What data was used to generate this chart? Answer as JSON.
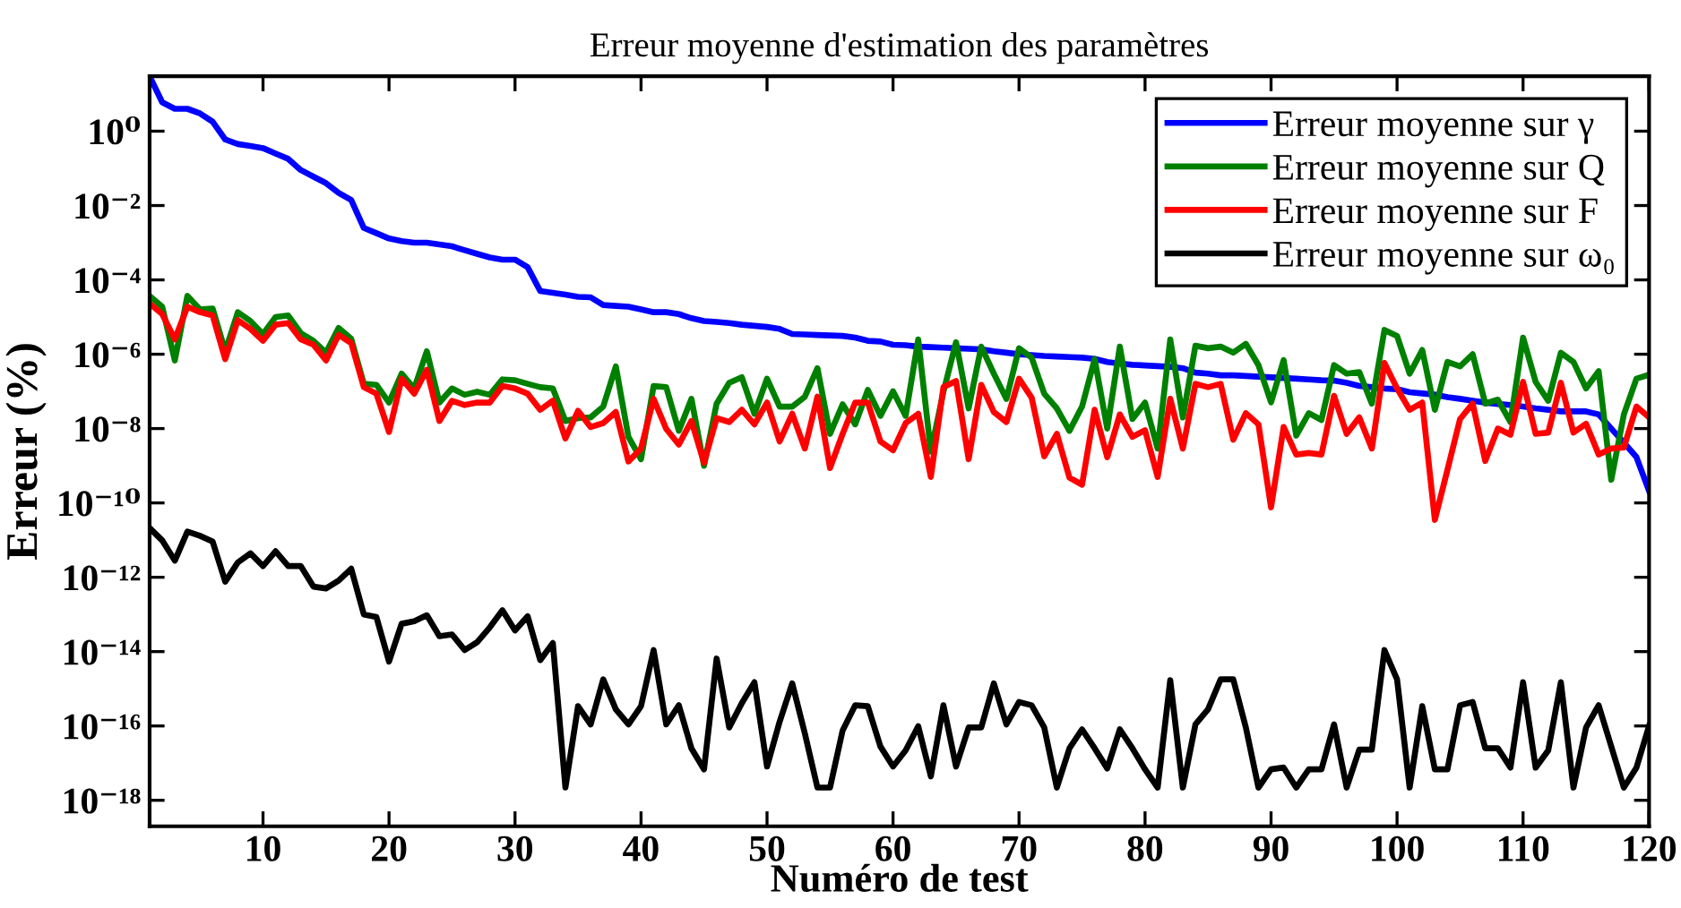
{
  "chart_data": {
    "type": "line",
    "title": "Erreur moyenne d'estimation des paramètres",
    "xlabel": "Numéro de test",
    "ylabel": "Erreur (%)",
    "x": [
      1,
      2,
      3,
      4,
      5,
      6,
      7,
      8,
      9,
      10,
      11,
      12,
      13,
      14,
      15,
      16,
      17,
      18,
      19,
      20,
      21,
      22,
      23,
      24,
      25,
      26,
      27,
      28,
      29,
      30,
      31,
      32,
      33,
      34,
      35,
      36,
      37,
      38,
      39,
      40,
      41,
      42,
      43,
      44,
      45,
      46,
      47,
      48,
      49,
      50,
      51,
      52,
      53,
      54,
      55,
      56,
      57,
      58,
      59,
      60,
      61,
      62,
      63,
      64,
      65,
      66,
      67,
      68,
      69,
      70,
      71,
      72,
      73,
      74,
      75,
      76,
      77,
      78,
      79,
      80,
      81,
      82,
      83,
      84,
      85,
      86,
      87,
      88,
      89,
      90,
      91,
      92,
      93,
      94,
      95,
      96,
      97,
      98,
      99,
      100,
      101,
      102,
      103,
      104,
      105,
      106,
      107,
      108,
      109,
      110,
      111,
      112,
      113,
      114,
      115,
      116,
      117,
      118,
      119,
      120
    ],
    "series": [
      {
        "name": "Erreur moyenne sur γ",
        "color": "#0000ff",
        "values": [
          30,
          6,
          4,
          4,
          3,
          1.8,
          0.6,
          0.45,
          0.4,
          0.35,
          0.25,
          0.18,
          0.09,
          0.06,
          0.04,
          0.022,
          0.014,
          0.0025,
          0.0018,
          0.0013,
          0.0011,
          0.001,
          0.001,
          0.0009,
          0.0008,
          0.00063,
          0.0005,
          0.0004,
          0.00035,
          0.00035,
          0.00022,
          5e-05,
          4.5e-05,
          4e-05,
          3.5e-05,
          3.4e-05,
          2.1e-05,
          2e-05,
          1.9e-05,
          1.6e-05,
          1.35e-05,
          1.35e-05,
          1.2e-05,
          9.3e-06,
          7.8e-06,
          7.4e-06,
          6.9e-06,
          6.2e-06,
          5.8e-06,
          5.4e-06,
          4.8e-06,
          3.5e-06,
          3.4e-06,
          3.3e-06,
          3.2e-06,
          3.1e-06,
          2.8e-06,
          2.3e-06,
          2.2e-06,
          1.8e-06,
          1.75e-06,
          1.6e-06,
          1.55e-06,
          1.5e-06,
          1.45e-06,
          1.4e-06,
          1.35e-06,
          1.2e-06,
          1.1e-06,
          1e-06,
          9.5e-07,
          9e-07,
          8.7e-07,
          8.4e-07,
          8.1e-07,
          7.5e-07,
          6.2e-07,
          5.6e-07,
          5.2e-07,
          5e-07,
          4.8e-07,
          4.6e-07,
          4.2e-07,
          3.2e-07,
          3e-07,
          2.7e-07,
          2.7e-07,
          2.6e-07,
          2.5e-07,
          2.4e-07,
          2.3e-07,
          2.2e-07,
          2.1e-07,
          2e-07,
          1.95e-07,
          1.7e-07,
          1.4e-07,
          1.3e-07,
          1.2e-07,
          1.15e-07,
          9.5e-08,
          8.8e-08,
          8.2e-08,
          7e-08,
          6.3e-08,
          5.6e-08,
          5e-08,
          4.6e-08,
          4.3e-08,
          3.9e-08,
          3.5e-08,
          3.2e-08,
          2.9e-08,
          2.9e-08,
          2.9e-08,
          2.4e-08,
          1e-08,
          4.2e-09,
          1.7e-09,
          2.1e-10
        ]
      },
      {
        "name": "Erreur moyenne sur Q",
        "color": "#008000",
        "values": [
          3.7e-05,
          1.9e-05,
          6.8e-07,
          3.7e-05,
          1.6e-05,
          1.7e-05,
          1.2e-06,
          1.35e-05,
          7.8e-06,
          3.5e-06,
          1e-05,
          1.1e-05,
          3.7e-06,
          2.3e-06,
          1.1e-06,
          5.1e-06,
          2.6e-06,
          1.6e-07,
          1.5e-07,
          5e-08,
          3e-07,
          1.2e-07,
          1.2e-06,
          5e-08,
          1.2e-07,
          8.1e-08,
          9.8e-08,
          8.1e-08,
          2.1e-07,
          2e-07,
          1.6e-07,
          1.3e-07,
          1.2e-07,
          1.6e-08,
          1.9e-08,
          2e-08,
          3.9e-08,
          4.7e-07,
          6e-09,
          1.5e-09,
          1.4e-07,
          1.3e-07,
          8.7e-09,
          6.3e-08,
          1e-09,
          4.7e-08,
          1.7e-07,
          2.4e-07,
          2.5e-08,
          2.2e-07,
          3.9e-08,
          3.9e-08,
          7.2e-08,
          4.2e-07,
          7.2e-09,
          4.5e-08,
          1.3e-08,
          1.1e-07,
          2.2e-08,
          1e-07,
          2.2e-08,
          2.5e-06,
          2.4e-09,
          9.8e-08,
          2.1e-06,
          3.5e-08,
          1.6e-06,
          3e-07,
          6.3e-08,
          1.45e-06,
          8.1e-07,
          8.7e-08,
          3.5e-08,
          8.7e-09,
          3.9e-08,
          7.4e-07,
          1e-08,
          1.6e-06,
          1.8e-08,
          5e-08,
          2.9e-09,
          2.5e-06,
          2e-08,
          1.7e-06,
          1.45e-06,
          1.6e-06,
          1.1e-06,
          1.9e-06,
          5.1e-07,
          5.1e-08,
          6.9e-07,
          6.5e-09,
          2.6e-08,
          1.7e-08,
          5.1e-07,
          3e-07,
          3.3e-07,
          4.7e-08,
          4.5e-06,
          3.1e-06,
          3e-07,
          1.3e-06,
          3.2e-08,
          6.2e-07,
          4.7e-07,
          1e-06,
          4.7e-08,
          6e-08,
          1.5e-08,
          2.8e-06,
          1.8e-07,
          5.6e-08,
          1.1e-06,
          6.2e-07,
          1.2e-07,
          3.5e-07,
          4.2e-10,
          2.4e-08,
          2.2e-07,
          2.8e-07
        ]
      },
      {
        "name": "Erreur moyenne sur F",
        "color": "#ff0000",
        "values": [
          2.3e-05,
          1.2e-05,
          2.5e-06,
          1.9e-05,
          1.35e-05,
          1.1e-05,
          7.4e-07,
          8.3e-06,
          4.8e-06,
          2.3e-06,
          6.2e-06,
          6.9e-06,
          2.5e-06,
          1.8e-06,
          6.8e-07,
          3.3e-06,
          2e-06,
          1.3e-07,
          8.7e-08,
          8.1e-09,
          2.2e-07,
          8.7e-08,
          3.8e-07,
          1.6e-08,
          5.6e-08,
          4.3e-08,
          5e-08,
          5e-08,
          1.4e-07,
          1.2e-07,
          8.7e-08,
          3.2e-08,
          5.6e-08,
          5.4e-09,
          3e-08,
          1.1e-08,
          1.4e-08,
          2.8e-08,
          1.3e-09,
          2.9e-09,
          6.3e-08,
          9.8e-09,
          3.7e-09,
          1.6e-08,
          1.2e-09,
          1.9e-08,
          1.5e-08,
          3.2e-08,
          1.3e-08,
          5e-08,
          4.5e-09,
          2.5e-08,
          2.9e-09,
          7.2e-08,
          8.7e-10,
          7.2e-09,
          5e-08,
          5e-08,
          4.5e-09,
          2.6e-09,
          1.4e-08,
          2.5e-08,
          5e-10,
          1.3e-07,
          1.9e-07,
          1.5e-09,
          1.5e-07,
          2.8e-08,
          1.5e-08,
          2.2e-07,
          6.8e-08,
          1.8e-09,
          7.2e-09,
          4.8e-10,
          3.1e-10,
          3.2e-08,
          1.7e-09,
          2.4e-08,
          6e-09,
          9e-09,
          5e-10,
          6.3e-08,
          2.9e-09,
          1.6e-07,
          1.3e-07,
          1.6e-07,
          5e-09,
          2.6e-08,
          1.3e-08,
          7.6e-11,
          1.1e-08,
          2e-09,
          2.2e-09,
          2e-09,
          7.6e-08,
          7.2e-09,
          2e-08,
          2.9e-09,
          5.8e-07,
          1.2e-07,
          3.2e-08,
          5e-08,
          3.5e-11,
          7.8e-10,
          1.8e-08,
          4.7e-08,
          1.35e-09,
          1e-08,
          6.8e-09,
          1.8e-07,
          7.2e-09,
          7.8e-09,
          1.7e-07,
          7.8e-09,
          1.35e-08,
          2e-09,
          2.9e-09,
          3.1e-09,
          3.9e-08,
          2e-08
        ]
      },
      {
        "name": "Erreur moyenne sur ω₀",
        "color": "#000000",
        "values": [
          2.1e-11,
          9.8e-12,
          2.8e-12,
          1.7e-11,
          1.3e-11,
          9.1e-12,
          7.6e-13,
          2.5e-12,
          4.4e-12,
          2e-12,
          5e-12,
          2e-12,
          2e-12,
          5.6e-13,
          5e-13,
          8.1e-13,
          1.7e-12,
          1e-13,
          8.5e-14,
          5.4e-15,
          5.6e-14,
          6.6e-14,
          9.5e-14,
          2.6e-14,
          2.9e-14,
          1.1e-14,
          1.8e-14,
          4.5e-14,
          1.3e-13,
          3.7e-14,
          8.9e-14,
          5.9e-15,
          1.7e-14,
          2.2e-18,
          3.4e-16,
          1.1e-16,
          1.8e-15,
          2.8e-16,
          1.1e-16,
          3.4e-16,
          1.1e-14,
          1.1e-16,
          3.6e-16,
          2.5e-17,
          6.8e-18,
          6.5e-15,
          9.1e-17,
          4.1e-16,
          1.5e-15,
          8.1e-18,
          1.3e-16,
          1.4e-15,
          6.3e-17,
          2.2e-18,
          2.2e-18,
          7.6e-17,
          3.6e-16,
          3.4e-16,
          2.8e-17,
          8.1e-18,
          2.2e-17,
          9.8e-17,
          4.4e-18,
          3.6e-16,
          8.1e-18,
          9.1e-17,
          9.1e-17,
          1.4e-15,
          1.1e-16,
          4.4e-16,
          3.6e-16,
          9.1e-17,
          2.2e-18,
          2.5e-17,
          8.1e-17,
          2.5e-17,
          7.2e-18,
          8.1e-17,
          2.5e-17,
          6.8e-18,
          2.2e-18,
          1.7e-15,
          2.2e-18,
          1.1e-16,
          2.8e-16,
          1.8e-15,
          1.8e-15,
          9.1e-17,
          2.2e-18,
          6.8e-18,
          7.6e-18,
          2.2e-18,
          6.8e-18,
          6.8e-18,
          1.1e-16,
          2.2e-18,
          2.3e-17,
          2.3e-17,
          1.1e-14,
          1.8e-15,
          2.2e-18,
          3.4e-16,
          6.8e-18,
          6.8e-18,
          3.6e-16,
          4.4e-16,
          2.5e-17,
          2.5e-17,
          7.6e-18,
          1.5e-15,
          7.6e-18,
          2.2e-17,
          1.5e-15,
          2.2e-18,
          9.1e-17,
          3.6e-16,
          2.8e-17,
          2.2e-18,
          7.6e-18,
          1e-16
        ]
      }
    ],
    "log": "y",
    "xlim": [
      1,
      120
    ],
    "ylim": [
      2e-19,
      30
    ],
    "xticks": [
      10,
      20,
      30,
      40,
      50,
      60,
      70,
      80,
      90,
      100,
      110,
      120
    ],
    "yticks": [
      {
        "value": 1e-18,
        "label": "10⁻¹⁸"
      },
      {
        "value": 1e-16,
        "label": "10⁻¹⁶"
      },
      {
        "value": 1e-14,
        "label": "10⁻¹⁴"
      },
      {
        "value": 1e-12,
        "label": "10⁻¹²"
      },
      {
        "value": 1e-10,
        "label": "10⁻¹⁰"
      },
      {
        "value": 1e-08,
        "label": "10⁻⁸"
      },
      {
        "value": 1e-06,
        "label": "10⁻⁶"
      },
      {
        "value": 0.0001,
        "label": "10⁻⁴"
      },
      {
        "value": 0.01,
        "label": "10⁻²"
      },
      {
        "value": 1,
        "label": "10⁰"
      }
    ],
    "grid": false,
    "legend": "top right",
    "marker": "none",
    "line_style": "solid"
  }
}
